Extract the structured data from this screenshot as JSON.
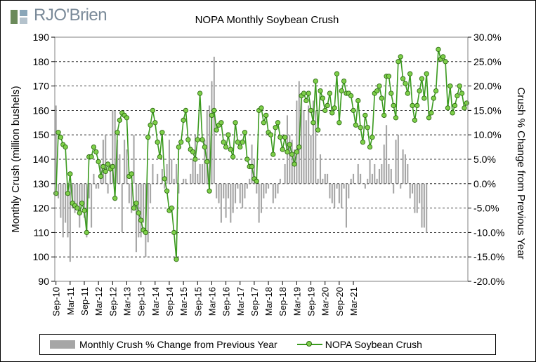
{
  "brand": {
    "logo_text": "RJO'Brien",
    "logo_color": "#7a8a99"
  },
  "chart_data": {
    "type": "bar+line",
    "title": "NOPA Monthly Soybean Crush",
    "ylabel_left": "Monthly Crush (million bushels)",
    "ylabel_right": "Crush % Change from Previous Year",
    "ylim_left": [
      90,
      190
    ],
    "ylim_right": [
      -20,
      30
    ],
    "yticks_left": [
      "90",
      "100",
      "110",
      "120",
      "130",
      "140",
      "150",
      "160",
      "170",
      "180",
      "190"
    ],
    "yticks_right": [
      "-20.0%",
      "-15.0%",
      "-10.0%",
      "-5.0%",
      "0.0%",
      "5.0%",
      "10.0%",
      "15.0%",
      "20.0%",
      "25.0%",
      "30.0%"
    ],
    "xtick_labels": [
      "Sep-10",
      "Mar-11",
      "Sep-11",
      "Mar-12",
      "Sep-12",
      "Mar-13",
      "Sep-13",
      "Mar-14",
      "Sep-14",
      "Mar-15",
      "Sep-15",
      "Mar-16",
      "Sep-16",
      "Mar-17",
      "Sep-17",
      "Mar-18",
      "Sep-18",
      "Mar-19",
      "Sep-19",
      "Mar-20",
      "Sep-20",
      "Mar-21"
    ],
    "start_month": "Sep-10",
    "grid": "horizontal dashed",
    "legend_position": "bottom",
    "series": [
      {
        "name": "Monthly Crush % Change from Previous Year",
        "type": "bar",
        "axis": "right",
        "color": "#a6a6a6",
        "values": [
          16,
          -3,
          -7,
          -11,
          -8,
          -11,
          -16,
          -5,
          -6,
          -5,
          -9,
          -4,
          -7,
          -11,
          -3,
          -9,
          2,
          -1,
          -1,
          4,
          9,
          10,
          -2,
          4,
          15,
          15,
          9,
          6,
          -10,
          9,
          7,
          -4,
          -6,
          10,
          -14,
          -11,
          -11,
          -8,
          -15,
          -12,
          -4,
          4,
          0,
          2,
          0,
          3,
          -1,
          4,
          9,
          5,
          1,
          4,
          -2,
          0,
          1,
          1,
          0,
          2,
          5,
          10,
          2,
          4,
          4,
          9,
          15,
          16,
          21,
          26,
          -3,
          -4,
          -8,
          -3,
          -7,
          -3,
          -8,
          -6,
          -4,
          -1,
          -4,
          -5,
          -3,
          -1,
          1,
          8,
          5,
          -2,
          -8,
          -6,
          -3,
          -2,
          -1,
          0,
          -4,
          -3,
          -2,
          1,
          0,
          4,
          14,
          10,
          9,
          7,
          17,
          21,
          18,
          15,
          13,
          16,
          10,
          17,
          15,
          1,
          6,
          1,
          2,
          2,
          -3,
          -4,
          -5,
          -1,
          -4,
          -5,
          -1,
          -9,
          -3,
          1,
          2,
          0,
          4,
          2,
          0,
          -1,
          1,
          5,
          2,
          4,
          1,
          3,
          4,
          8,
          12,
          4,
          3,
          -2,
          9,
          10,
          -1,
          7,
          6,
          4,
          -3,
          -2,
          -6,
          -6,
          -4,
          -9,
          -9,
          -10
        ]
      },
      {
        "name": "NOPA Soybean Crush",
        "type": "line",
        "axis": "left",
        "color": "#3a9a1e",
        "marker_color": "#7ed04a",
        "values": [
          126,
          151,
          149,
          146,
          145,
          126,
          134,
          122,
          121,
          120,
          118,
          122,
          119,
          110,
          141,
          141,
          145,
          143,
          139,
          133,
          137,
          135,
          138,
          136,
          137,
          124,
          151,
          156,
          159,
          158,
          157,
          133,
          134,
          120,
          122,
          118,
          115,
          111,
          110,
          149,
          154,
          160,
          155,
          147,
          141,
          151,
          132,
          127,
          119,
          120,
          110,
          99,
          145,
          147,
          156,
          160,
          148,
          144,
          143,
          140,
          148,
          167,
          148,
          145,
          139,
          127,
          158,
          160,
          152,
          154,
          155,
          147,
          145,
          150,
          144,
          141,
          155,
          147,
          145,
          147,
          151,
          140,
          137,
          137,
          132,
          131,
          160,
          161,
          155,
          158,
          151,
          150,
          142,
          153,
          155,
          149,
          144,
          149,
          143,
          146,
          142,
          138,
          143,
          145,
          166,
          167,
          164,
          167,
          160,
          155,
          172,
          152,
          168,
          165,
          160,
          162,
          167,
          159,
          161,
          175,
          155,
          168,
          172,
          167,
          167,
          166,
          160,
          154,
          164,
          153,
          147,
          158,
          153,
          145,
          149,
          167,
          168,
          170,
          165,
          158,
          174,
          174,
          167,
          162,
          157,
          180,
          182,
          173,
          171,
          167,
          175,
          162,
          156,
          162,
          168,
          173,
          165,
          175,
          157,
          159,
          165,
          168,
          185,
          181,
          182,
          180,
          161,
          170,
          159,
          162,
          166,
          170,
          167,
          161,
          163
        ]
      }
    ]
  }
}
